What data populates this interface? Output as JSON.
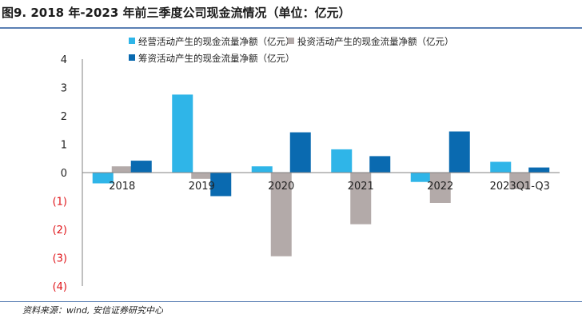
{
  "figure": {
    "title": "图9. 2018 年-2023 年前三季度公司现金流情况（单位：亿元）",
    "source": "资料来源：wind, 安信证券研究中心"
  },
  "chart_data": {
    "type": "bar",
    "categories": [
      "2018",
      "2019",
      "2020",
      "2021",
      "2022",
      "2023Q1-Q3"
    ],
    "series": [
      {
        "name": "经营活动产生的现金流量净额（亿元）",
        "color": "#2fb5e8",
        "values": [
          -0.38,
          2.75,
          0.22,
          0.82,
          -0.33,
          0.38
        ]
      },
      {
        "name": "投资活动产生的现金流量净额（亿元）",
        "color": "#b3aaa9",
        "values": [
          0.22,
          -0.22,
          -2.95,
          -1.82,
          -1.07,
          -0.58
        ]
      },
      {
        "name": "筹资活动产生的现金流量净额（亿元）",
        "color": "#0a6ab0",
        "values": [
          0.42,
          -0.83,
          1.42,
          0.58,
          1.45,
          0.18
        ]
      }
    ],
    "yticks": [
      {
        "value": 4,
        "label": "4"
      },
      {
        "value": 3,
        "label": "3"
      },
      {
        "value": 2,
        "label": "2"
      },
      {
        "value": 1,
        "label": "1"
      },
      {
        "value": 0,
        "label": "0"
      },
      {
        "value": -1,
        "label": "(1)"
      },
      {
        "value": -2,
        "label": "(2)"
      },
      {
        "value": -3,
        "label": "(3)"
      },
      {
        "value": -4,
        "label": "(4)"
      }
    ],
    "ylim": [
      -4,
      4
    ],
    "negative_label_color": "#e0151a",
    "legend_position": "top"
  }
}
